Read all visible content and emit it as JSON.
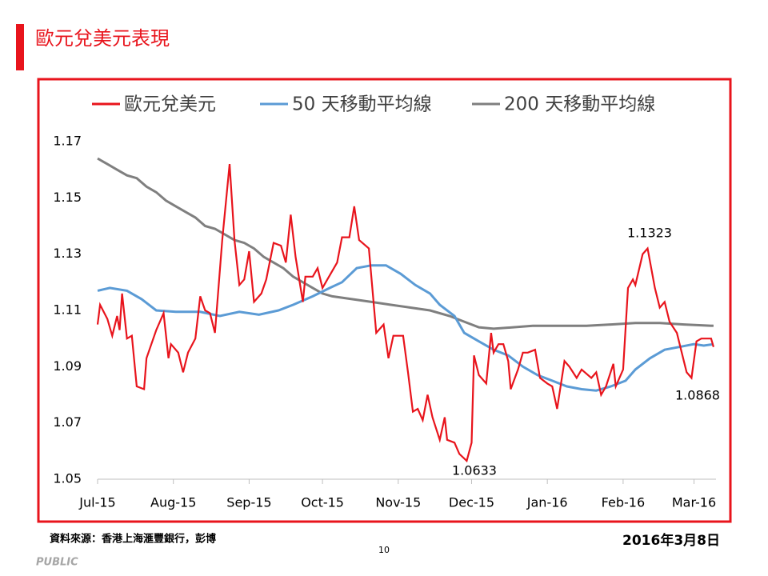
{
  "slide": {
    "title": "歐元兌美元表現",
    "source": "資料來源：香港上海滙豐銀行，彭博",
    "page": "10",
    "date": "2016年3月8日",
    "classification": "PUBLIC"
  },
  "chart_data": {
    "type": "line",
    "xlim": [
      0,
      253
    ],
    "xticks": [
      {
        "value": 0,
        "label": "Jul-15"
      },
      {
        "value": 31,
        "label": "Aug-15"
      },
      {
        "value": 62,
        "label": "Sep-15"
      },
      {
        "value": 92,
        "label": "Oct-15"
      },
      {
        "value": 123,
        "label": "Nov-15"
      },
      {
        "value": 153,
        "label": "Dec-15"
      },
      {
        "value": 184,
        "label": "Jan-16"
      },
      {
        "value": 215,
        "label": "Feb-16"
      },
      {
        "value": 244,
        "label": "Mar-16"
      }
    ],
    "ylim": [
      1.05,
      1.17
    ],
    "yticks": [
      1.05,
      1.07,
      1.09,
      1.11,
      1.13,
      1.15,
      1.17
    ],
    "grid": false,
    "legend": "top",
    "annotations": [
      "1.1323",
      "1.0633",
      "1.0868"
    ],
    "series": [
      {
        "name": "歐元兌美元",
        "color": "#e8141c",
        "x": [
          0,
          1,
          4,
          6,
          8,
          9,
          10,
          12,
          14,
          16,
          19,
          20,
          22,
          24,
          27,
          29,
          30,
          33,
          35,
          37,
          40,
          42,
          44,
          46,
          48,
          51,
          54,
          56,
          58,
          60,
          62,
          64,
          67,
          69,
          72,
          75,
          77,
          79,
          81,
          84,
          85,
          88,
          90,
          92,
          94,
          98,
          100,
          103,
          105,
          107,
          111,
          114,
          117,
          119,
          121,
          125,
          127,
          129,
          131,
          133,
          135,
          137,
          140,
          142,
          143,
          146,
          148,
          151,
          153,
          154,
          156,
          159,
          161,
          162,
          164,
          166,
          168,
          169,
          172,
          174,
          176,
          179,
          181,
          184,
          186,
          188,
          191,
          193,
          196,
          198,
          202,
          204,
          206,
          208,
          211,
          212,
          215,
          217,
          219,
          220,
          223,
          225,
          228,
          230,
          232,
          234,
          237,
          239,
          241,
          243,
          245,
          247,
          251,
          252
        ],
        "values": [
          1.105,
          1.112,
          1.107,
          1.101,
          1.108,
          1.103,
          1.116,
          1.1,
          1.101,
          1.083,
          1.082,
          1.093,
          1.098,
          1.103,
          1.109,
          1.093,
          1.098,
          1.095,
          1.088,
          1.095,
          1.1,
          1.115,
          1.11,
          1.109,
          1.102,
          1.135,
          1.162,
          1.135,
          1.119,
          1.121,
          1.131,
          1.113,
          1.116,
          1.121,
          1.134,
          1.133,
          1.127,
          1.144,
          1.129,
          1.113,
          1.122,
          1.122,
          1.125,
          1.118,
          1.121,
          1.127,
          1.136,
          1.136,
          1.147,
          1.135,
          1.132,
          1.102,
          1.105,
          1.093,
          1.101,
          1.101,
          1.088,
          1.074,
          1.075,
          1.071,
          1.08,
          1.072,
          1.064,
          1.072,
          1.064,
          1.063,
          1.059,
          1.0565,
          1.063,
          1.094,
          1.087,
          1.084,
          1.102,
          1.095,
          1.098,
          1.098,
          1.092,
          1.082,
          1.089,
          1.095,
          1.095,
          1.096,
          1.086,
          1.084,
          1.083,
          1.075,
          1.092,
          1.09,
          1.086,
          1.089,
          1.086,
          1.088,
          1.08,
          1.083,
          1.091,
          1.083,
          1.089,
          1.118,
          1.121,
          1.119,
          1.13,
          1.132,
          1.118,
          1.111,
          1.113,
          1.106,
          1.102,
          1.095,
          1.088,
          1.086,
          1.099,
          1.1,
          1.1,
          1.097
        ]
      },
      {
        "name": "50 天移動平均線",
        "color": "#5b9bd5",
        "x": [
          0,
          5,
          12,
          18,
          24,
          32,
          42,
          50,
          58,
          66,
          74,
          80,
          88,
          95,
          100,
          106,
          112,
          118,
          124,
          130,
          136,
          140,
          146,
          150,
          156,
          162,
          168,
          174,
          180,
          186,
          192,
          198,
          204,
          210,
          216,
          220,
          226,
          232,
          238,
          244,
          248,
          252
        ],
        "values": [
          1.117,
          1.118,
          1.117,
          1.114,
          1.11,
          1.1095,
          1.1095,
          1.108,
          1.1095,
          1.1085,
          1.11,
          1.112,
          1.115,
          1.118,
          1.12,
          1.125,
          1.126,
          1.126,
          1.123,
          1.119,
          1.116,
          1.112,
          1.108,
          1.102,
          1.099,
          1.096,
          1.094,
          1.09,
          1.087,
          1.085,
          1.083,
          1.082,
          1.0815,
          1.083,
          1.085,
          1.089,
          1.093,
          1.096,
          1.097,
          1.098,
          1.0975,
          1.098
        ]
      },
      {
        "name": "200 天移動平均線",
        "color": "#7f7f7f",
        "x": [
          0,
          4,
          8,
          12,
          16,
          20,
          24,
          28,
          32,
          36,
          40,
          44,
          48,
          52,
          56,
          60,
          64,
          68,
          72,
          76,
          80,
          84,
          88,
          92,
          96,
          104,
          112,
          120,
          128,
          136,
          144,
          150,
          156,
          162,
          170,
          178,
          200,
          210,
          220,
          230,
          240,
          252
        ],
        "values": [
          1.164,
          1.162,
          1.16,
          1.158,
          1.157,
          1.154,
          1.152,
          1.149,
          1.147,
          1.145,
          1.143,
          1.14,
          1.139,
          1.137,
          1.135,
          1.134,
          1.132,
          1.129,
          1.127,
          1.125,
          1.122,
          1.12,
          1.118,
          1.116,
          1.115,
          1.114,
          1.113,
          1.112,
          1.111,
          1.11,
          1.108,
          1.106,
          1.104,
          1.1035,
          1.104,
          1.1045,
          1.1045,
          1.105,
          1.1055,
          1.1055,
          1.105,
          1.1045
        ]
      }
    ]
  }
}
